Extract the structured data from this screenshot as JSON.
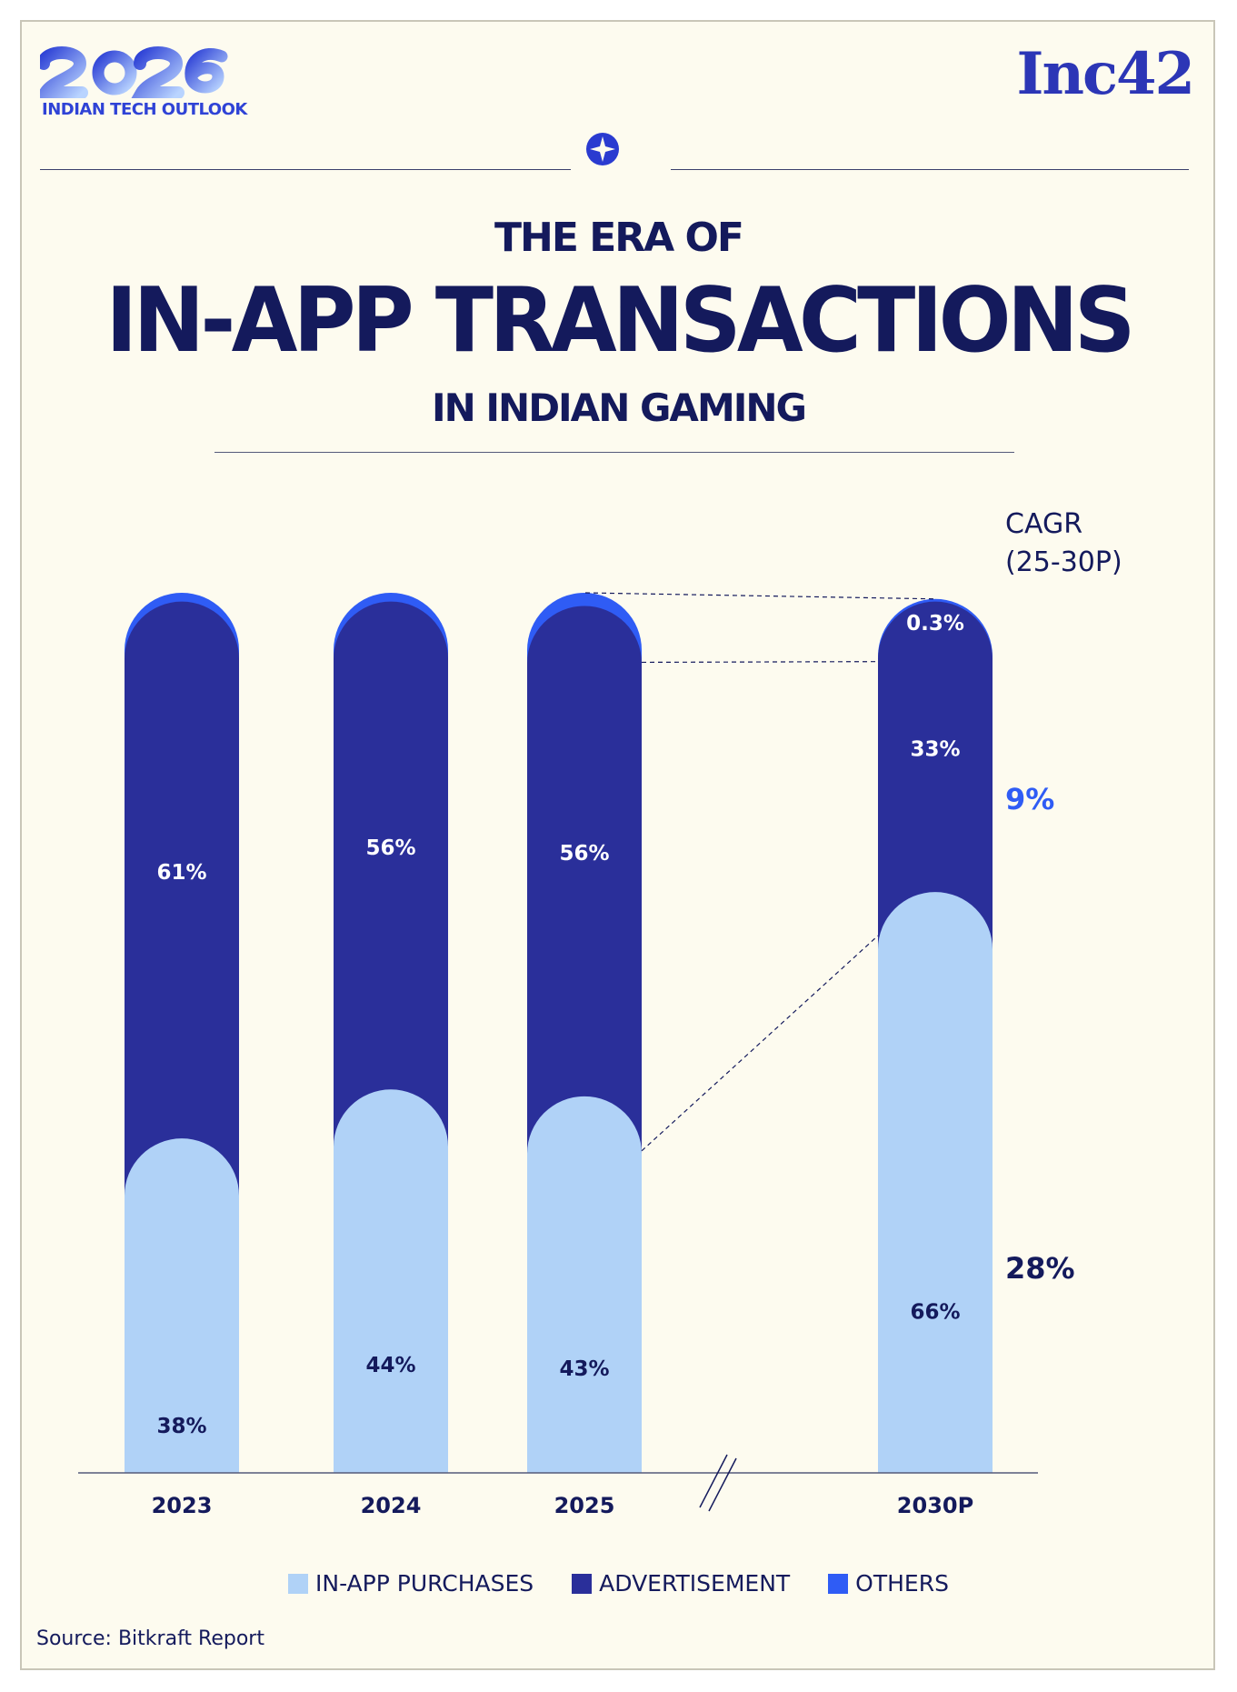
{
  "brand": {
    "year": "2026",
    "subtitle": "INDIAN TECH OUTLOOK",
    "publisher": "Inc42"
  },
  "title": {
    "line1": "THE ERA OF",
    "line2": "IN-APP TRANSACTIONS",
    "line3": "IN INDIAN GAMING"
  },
  "cagr": {
    "label_line1": "CAGR",
    "label_line2": "(25-30P)",
    "advertisement": "9%",
    "in_app_purchases": "28%"
  },
  "colors": {
    "in_app": "#b0d2f7",
    "advertisement": "#2a2f9a",
    "others": "#2f5cf5",
    "text": "#141a5c"
  },
  "chart_data": {
    "type": "bar",
    "stacked": true,
    "normalized": true,
    "categories": [
      "2023",
      "2024",
      "2025",
      "2030P"
    ],
    "series": [
      {
        "name": "IN-APP PURCHASES",
        "values": [
          38,
          44,
          43,
          66
        ],
        "labels": [
          "38%",
          "44%",
          "43%",
          "66%"
        ]
      },
      {
        "name": "ADVERTISEMENT",
        "values": [
          61,
          56,
          56,
          33
        ],
        "labels": [
          "61%",
          "56%",
          "56%",
          "33%"
        ]
      },
      {
        "name": "OTHERS",
        "values": [
          1,
          1,
          1.5,
          0.3
        ],
        "labels": [
          "",
          "",
          "",
          "0.3%"
        ]
      }
    ],
    "ylim": [
      0,
      100
    ],
    "grid": false,
    "axis_break_between": [
      "2025",
      "2030P"
    ],
    "legend_position": "bottom"
  },
  "source": "Source: Bitkraft Report"
}
